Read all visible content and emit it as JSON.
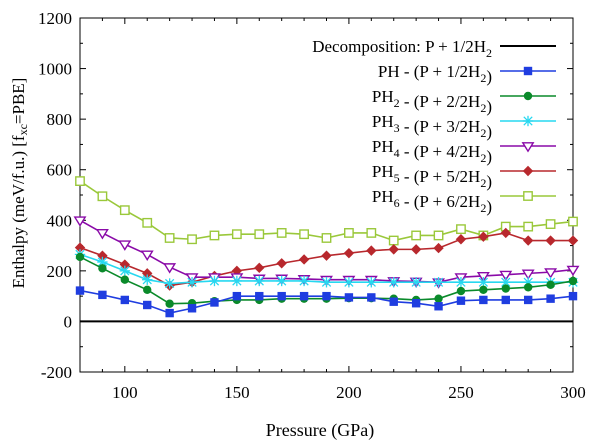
{
  "chart_data": {
    "type": "line",
    "xlabel": "Pressure (GPa)",
    "ylabel": {
      "pre": "Enthalpy (meV/f.u.) [f",
      "sub": "xc",
      "post": "=PBE]"
    },
    "xlim": [
      80,
      300
    ],
    "ylim": [
      -200,
      1200
    ],
    "xticks": [
      100,
      150,
      200,
      250,
      300
    ],
    "yticks": [
      -200,
      0,
      200,
      400,
      600,
      800,
      1000,
      1200
    ],
    "legend_position": "top-right",
    "x": [
      80,
      90,
      100,
      110,
      120,
      130,
      140,
      150,
      160,
      170,
      180,
      190,
      200,
      210,
      220,
      230,
      240,
      250,
      260,
      270,
      280,
      290,
      300
    ],
    "series": [
      {
        "key": "decomp",
        "legend": [
          {
            "t": "Decomposition: P + 1/2H"
          },
          {
            "t": "2",
            "sub": true
          }
        ],
        "color": "#000000",
        "marker": "none",
        "values": [
          0,
          0,
          0,
          0,
          0,
          0,
          0,
          0,
          0,
          0,
          0,
          0,
          0,
          0,
          0,
          0,
          0,
          0,
          0,
          0,
          0,
          0,
          0
        ]
      },
      {
        "key": "ph",
        "legend": [
          {
            "t": "PH   - (P + 1/2H"
          },
          {
            "t": "2",
            "sub": true
          },
          {
            "t": ")"
          }
        ],
        "color": "#1f3de0",
        "marker": "square-filled",
        "values": [
          122,
          105,
          85,
          65,
          33,
          52,
          75,
          100,
          100,
          100,
          100,
          100,
          95,
          95,
          78,
          72,
          60,
          82,
          85,
          85,
          85,
          90,
          100
        ]
      },
      {
        "key": "ph2",
        "legend": [
          {
            "t": "PH"
          },
          {
            "t": "2",
            "sub": true
          },
          {
            "t": " - (P + 2/2H"
          },
          {
            "t": "2",
            "sub": true
          },
          {
            "t": ")"
          }
        ],
        "color": "#0a8a2a",
        "marker": "circle-filled",
        "values": [
          255,
          210,
          165,
          125,
          70,
          72,
          80,
          85,
          85,
          90,
          90,
          90,
          92,
          92,
          90,
          85,
          90,
          120,
          125,
          130,
          135,
          145,
          160
        ]
      },
      {
        "key": "ph3",
        "legend": [
          {
            "t": "PH"
          },
          {
            "t": "3",
            "sub": true
          },
          {
            "t": " - (P + 3/2H"
          },
          {
            "t": "3",
            "sub": false,
            "hide": true
          },
          {
            "t": "2",
            "sub": true
          },
          {
            "t": ")"
          }
        ],
        "color": "#27d8f0",
        "marker": "star",
        "values": [
          265,
          235,
          200,
          165,
          150,
          155,
          160,
          160,
          160,
          160,
          160,
          155,
          155,
          155,
          155,
          155,
          155,
          155,
          155,
          155,
          155,
          155,
          155
        ]
      },
      {
        "key": "ph4",
        "legend": [
          {
            "t": "PH"
          },
          {
            "t": "4",
            "sub": true
          },
          {
            "t": " - (P + 4/2H"
          },
          {
            "t": "2",
            "sub": true
          },
          {
            "t": ")"
          }
        ],
        "color": "#8a0aa8",
        "marker": "triangle-down-open",
        "values": [
          400,
          350,
          305,
          265,
          215,
          175,
          175,
          175,
          170,
          170,
          168,
          165,
          165,
          165,
          160,
          158,
          155,
          175,
          180,
          185,
          190,
          195,
          205
        ]
      },
      {
        "key": "ph5",
        "legend": [
          {
            "t": "PH"
          },
          {
            "t": "5",
            "sub": true
          },
          {
            "t": " - (P + 5/2H"
          },
          {
            "t": "2",
            "sub": true
          },
          {
            "t": ")"
          }
        ],
        "color": "#b8282d",
        "marker": "diamond-filled",
        "values": [
          292,
          260,
          225,
          190,
          142,
          155,
          180,
          200,
          212,
          230,
          245,
          260,
          270,
          280,
          285,
          285,
          290,
          325,
          335,
          350,
          320,
          320,
          320
        ]
      },
      {
        "key": "ph6",
        "legend": [
          {
            "t": "PH"
          },
          {
            "t": "6",
            "sub": true
          },
          {
            "t": " - (P + 6/2H"
          },
          {
            "t": "2",
            "sub": true
          },
          {
            "t": ")"
          }
        ],
        "color": "#9ac83a",
        "marker": "square-open",
        "values": [
          555,
          495,
          440,
          390,
          330,
          325,
          340,
          345,
          345,
          350,
          345,
          330,
          350,
          350,
          320,
          340,
          340,
          365,
          340,
          375,
          375,
          385,
          395
        ]
      }
    ]
  }
}
